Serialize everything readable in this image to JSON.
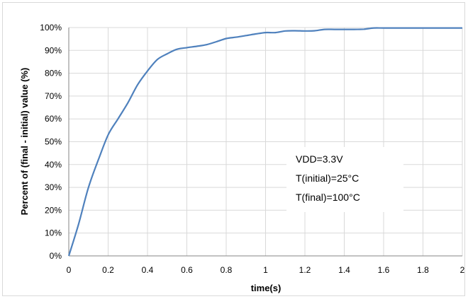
{
  "chart_data": {
    "type": "line",
    "xlabel": "time(s)",
    "ylabel": "Percent of (final - initial) value (%)",
    "xlim": [
      0,
      2
    ],
    "ylim": [
      0,
      100
    ],
    "x_ticks": [
      "0",
      "0.2",
      "0.4",
      "0.6",
      "0.8",
      "1",
      "1.2",
      "1.4",
      "1.6",
      "1.8",
      "2"
    ],
    "y_ticks": [
      "0%",
      "10%",
      "20%",
      "30%",
      "40%",
      "50%",
      "60%",
      "70%",
      "80%",
      "90%",
      "100%"
    ],
    "grid": true,
    "line_color": "#4f81bd",
    "annotations": [
      "VDD=3.3V",
      "T(initial)=25°C",
      "T(final)=100°C"
    ],
    "series": [
      {
        "x": [
          0,
          0.05,
          0.1,
          0.15,
          0.2,
          0.25,
          0.3,
          0.35,
          0.4,
          0.45,
          0.5,
          0.55,
          0.6,
          0.65,
          0.7,
          0.75,
          0.8,
          0.85,
          0.9,
          0.95,
          1.0,
          1.05,
          1.1,
          1.15,
          1.2,
          1.25,
          1.3,
          1.35,
          1.4,
          1.45,
          1.5,
          1.55,
          1.6,
          1.7,
          1.8,
          1.9,
          2.0
        ],
        "y": [
          0,
          14,
          30,
          42,
          53,
          60,
          67,
          75,
          81,
          86,
          88.5,
          90.5,
          91.2,
          91.8,
          92.5,
          93.8,
          95.2,
          95.8,
          96.5,
          97.2,
          97.8,
          97.8,
          98.5,
          98.6,
          98.5,
          98.6,
          99.2,
          99.2,
          99.2,
          99.2,
          99.3,
          99.8,
          99.8,
          99.8,
          99.8,
          99.8,
          99.8
        ]
      }
    ]
  }
}
